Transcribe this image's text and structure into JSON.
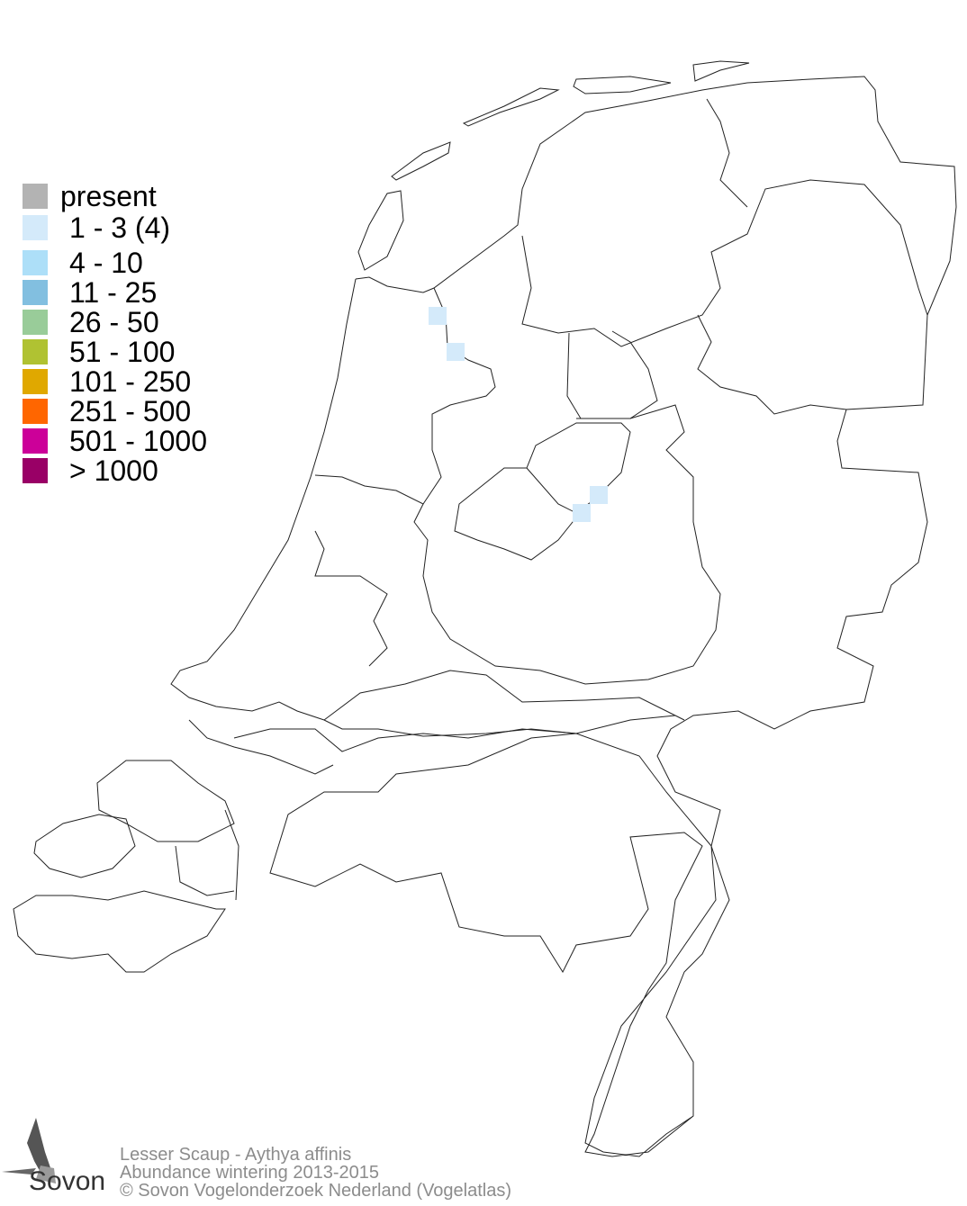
{
  "legend": {
    "items": [
      {
        "label": "present",
        "color": "#b3b3b3"
      },
      {
        "label": "1 - 3 (4)",
        "color": "#d4eafa"
      },
      {
        "label": "4 - 10",
        "color": "#addff8"
      },
      {
        "label": "11 - 25",
        "color": "#82bfe0"
      },
      {
        "label": "26 - 50",
        "color": "#99cc99"
      },
      {
        "label": "51 - 100",
        "color": "#b0c232"
      },
      {
        "label": "101 - 250",
        "color": "#e0a800"
      },
      {
        "label": "251 - 500",
        "color": "#ff6600"
      },
      {
        "label": "501 - 1000",
        "color": "#cc0099"
      },
      {
        "label": "> 1000",
        "color": "#990066"
      }
    ]
  },
  "map": {
    "region": "Netherlands",
    "occupied_cells_class": "1 - 3 (4)",
    "occupied_cells_count": 4
  },
  "footer": {
    "line1": "Lesser Scaup - Aythya affinis",
    "line2": "Abundance wintering 2013-2015",
    "line3": "© Sovon Vogelonderzoek Nederland (Vogelatlas)"
  },
  "logo": {
    "text": "Sovon",
    "icon": "swallow-icon"
  }
}
